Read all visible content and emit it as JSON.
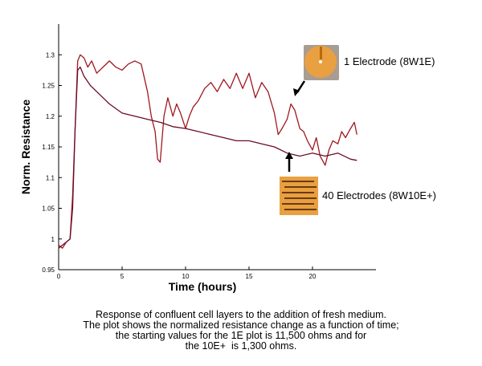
{
  "chart_data": {
    "type": "line",
    "xlabel": "Time (hours)",
    "ylabel": "Norm. Resistance",
    "xlim": [
      0,
      25
    ],
    "ylim": [
      0.95,
      1.35
    ],
    "x_ticks": [
      0,
      5,
      10,
      15,
      20
    ],
    "y_ticks": [
      0.95,
      1,
      1.05,
      1.1,
      1.15,
      1.2,
      1.25,
      1.3
    ],
    "x_tick_labels": [
      "0",
      "5",
      "10",
      "15",
      "20"
    ],
    "y_tick_labels": [
      "0.95",
      "1",
      "1.05",
      "1.1",
      "1.15",
      "1.2",
      "1.25",
      "1.3"
    ],
    "grid": false,
    "series": [
      {
        "color": "#a01820",
        "x": [
          0,
          0.3,
          0.6,
          0.9,
          1.1,
          1.3,
          1.5,
          1.7,
          2.0,
          2.3,
          2.6,
          3.0,
          3.5,
          4.0,
          4.5,
          5.0,
          5.5,
          6.0,
          6.5,
          7.0,
          7.3,
          7.6,
          7.8,
          8.0,
          8.3,
          8.6,
          9.0,
          9.3,
          9.6,
          10.0,
          10.3,
          10.6,
          11.0,
          11.5,
          12.0,
          12.5,
          13.0,
          13.5,
          14.0,
          14.5,
          15.0,
          15.5,
          16.0,
          16.5,
          17.0,
          17.3,
          17.6,
          18.0,
          18.3,
          18.6,
          19.0,
          19.3,
          19.6,
          20.0,
          20.3,
          20.6,
          21.0,
          21.3,
          21.6,
          22.0,
          22.3,
          22.6,
          23.0,
          23.3,
          23.5
        ],
        "y": [
          0.99,
          0.985,
          0.995,
          1.0,
          1.07,
          1.18,
          1.29,
          1.3,
          1.295,
          1.28,
          1.29,
          1.27,
          1.28,
          1.29,
          1.28,
          1.275,
          1.285,
          1.29,
          1.285,
          1.24,
          1.2,
          1.175,
          1.13,
          1.125,
          1.2,
          1.23,
          1.2,
          1.22,
          1.205,
          1.18,
          1.2,
          1.215,
          1.225,
          1.245,
          1.255,
          1.24,
          1.26,
          1.245,
          1.27,
          1.245,
          1.27,
          1.23,
          1.255,
          1.24,
          1.205,
          1.17,
          1.18,
          1.195,
          1.22,
          1.21,
          1.18,
          1.175,
          1.16,
          1.145,
          1.165,
          1.135,
          1.12,
          1.145,
          1.16,
          1.155,
          1.175,
          1.165,
          1.18,
          1.19,
          1.17
        ]
      },
      {
        "color": "#6a0c28",
        "x": [
          0,
          0.3,
          0.6,
          0.9,
          1.1,
          1.3,
          1.5,
          1.7,
          2.0,
          2.5,
          3.0,
          3.5,
          4.0,
          5.0,
          6.0,
          7.0,
          8.0,
          9.0,
          10.0,
          11.0,
          12.0,
          13.0,
          14.0,
          15.0,
          16.0,
          17.0,
          18.0,
          19.0,
          20.0,
          21.0,
          22.0,
          23.0,
          23.5
        ],
        "y": [
          0.985,
          0.99,
          0.995,
          1.0,
          1.05,
          1.18,
          1.275,
          1.28,
          1.265,
          1.25,
          1.24,
          1.23,
          1.22,
          1.205,
          1.2,
          1.195,
          1.19,
          1.183,
          1.18,
          1.175,
          1.17,
          1.165,
          1.16,
          1.16,
          1.155,
          1.15,
          1.14,
          1.135,
          1.14,
          1.135,
          1.14,
          1.13,
          1.128
        ]
      }
    ],
    "annotations": [
      {
        "text": "1 Electrode (8W1E)"
      },
      {
        "text": "40 Electrodes (8W10E+)"
      }
    ]
  },
  "caption": [
    "Response of confluent cell layers to the addition of fresh medium.",
    "The plot shows the normalized resistance change as a function of time;",
    "the starting values for the 1E plot is 11,500 ohms and for",
    "the 10E+  is 1,300 ohms."
  ],
  "colors": {
    "electrode_gold": "#e8a040",
    "electrode_dark": "#b86a10"
  },
  "icons": {
    "single": "single-electrode-icon",
    "multi": "multi-electrode-icon"
  }
}
